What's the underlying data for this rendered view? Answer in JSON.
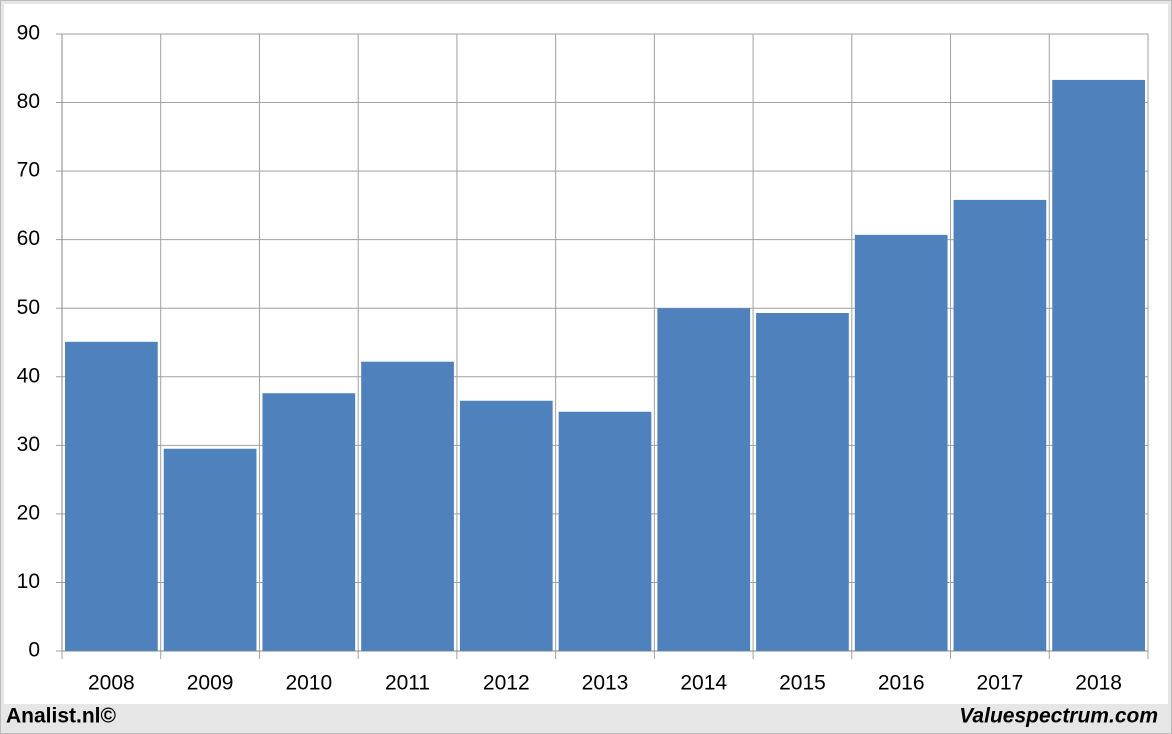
{
  "chart_data": {
    "type": "bar",
    "categories": [
      "2008",
      "2009",
      "2010",
      "2011",
      "2012",
      "2013",
      "2014",
      "2015",
      "2016",
      "2017",
      "2018"
    ],
    "values": [
      45.1,
      29.5,
      37.6,
      42.2,
      36.5,
      34.9,
      50.0,
      49.3,
      60.7,
      65.8,
      83.3
    ],
    "color": "#4f81bd",
    "ylim": [
      0,
      90
    ],
    "yticks": [
      0,
      10,
      20,
      30,
      40,
      50,
      60,
      70,
      80,
      90
    ],
    "grid": true
  },
  "credits": {
    "left": "Analist.nl©",
    "right": "Valuespectrum.com"
  }
}
